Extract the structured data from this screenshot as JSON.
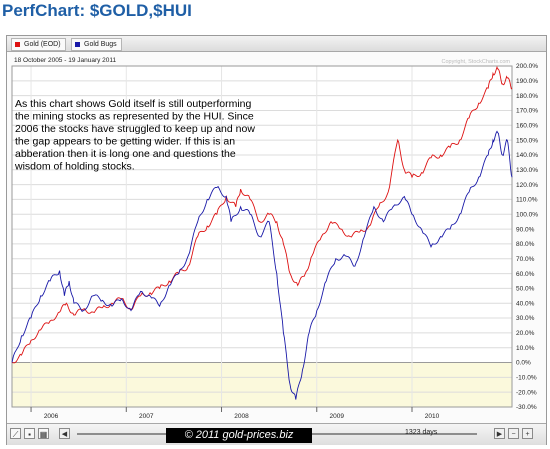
{
  "page": {
    "title": "PerfChart: $GOLD,$HUI"
  },
  "legend": [
    {
      "label": "Gold (EOD)",
      "color": "#dd1111"
    },
    {
      "label": "Gold Bugs",
      "color": "#1a1aa8"
    }
  ],
  "chart_info": {
    "date_range": "18 October 2005 - 19 January 2011",
    "copyright": "Copyright, StockCharts.com"
  },
  "annotation": [
    "As this chart shows Gold itself is still outperforming",
    "the mining stocks as represented by the HUI. Since",
    "2006 the stocks have struggled to keep up and now",
    "the gap appears to be getting wider. If this is an",
    "abberation then it is long one and questions the",
    "wisdom of holding stocks."
  ],
  "footer": {
    "days": "1323 days",
    "watermark": "© 2011 gold-prices.biz"
  },
  "chart_data": {
    "type": "line",
    "ylim": [
      -30,
      200
    ],
    "y_ticks": [
      -30,
      -20,
      -10,
      0,
      10,
      20,
      30,
      40,
      50,
      60,
      70,
      80,
      90,
      100,
      110,
      120,
      130,
      140,
      150,
      160,
      170,
      180,
      190,
      200
    ],
    "y_tick_labels": [
      "-30.0%",
      "-20.0%",
      "-10.0%",
      "0.0%",
      "10.0%",
      "20.0%",
      "30.0%",
      "40.0%",
      "50.0%",
      "60.0%",
      "70.0%",
      "80.0%",
      "90.0%",
      "100.0%",
      "110.0%",
      "120.0%",
      "130.0%",
      "140.0%",
      "150.0%",
      "160.0%",
      "170.0%",
      "180.0%",
      "190.0%",
      "200.0%"
    ],
    "x_ticks": [
      2006,
      2007,
      2008,
      2009,
      2010
    ],
    "x_tick_labels": [
      "2006",
      "2007",
      "2008",
      "2009",
      "2010"
    ],
    "xlim": [
      2005.8,
      2011.05
    ],
    "grid": true,
    "series": [
      {
        "name": "Gold (EOD)",
        "color": "#dd1111",
        "x": [
          2005.8,
          2005.9,
          2006.0,
          2006.1,
          2006.2,
          2006.3,
          2006.37,
          2006.45,
          2006.55,
          2006.65,
          2006.75,
          2006.85,
          2006.95,
          2007.05,
          2007.15,
          2007.25,
          2007.35,
          2007.45,
          2007.55,
          2007.65,
          2007.75,
          2007.85,
          2007.95,
          2008.05,
          2008.15,
          2008.2,
          2008.3,
          2008.4,
          2008.5,
          2008.58,
          2008.65,
          2008.72,
          2008.8,
          2008.88,
          2008.95,
          2009.05,
          2009.15,
          2009.25,
          2009.35,
          2009.45,
          2009.55,
          2009.65,
          2009.75,
          2009.85,
          2009.92,
          2010.0,
          2010.1,
          2010.2,
          2010.3,
          2010.4,
          2010.5,
          2010.6,
          2010.7,
          2010.8,
          2010.85,
          2010.9,
          2010.95,
          2011.0,
          2011.05
        ],
        "values": [
          0,
          5,
          15,
          22,
          28,
          34,
          40,
          32,
          36,
          34,
          37,
          40,
          43,
          36,
          45,
          47,
          50,
          55,
          60,
          65,
          85,
          92,
          100,
          112,
          105,
          117,
          110,
          95,
          100,
          95,
          80,
          60,
          52,
          60,
          72,
          85,
          95,
          90,
          85,
          88,
          92,
          105,
          115,
          150,
          130,
          125,
          128,
          138,
          140,
          145,
          150,
          165,
          175,
          185,
          195,
          198,
          188,
          192,
          185
        ]
      },
      {
        "name": "Gold Bugs",
        "color": "#1a1aa8",
        "x": [
          2005.8,
          2005.9,
          2006.0,
          2006.1,
          2006.2,
          2006.3,
          2006.35,
          2006.4,
          2006.45,
          2006.55,
          2006.65,
          2006.75,
          2006.85,
          2006.95,
          2007.05,
          2007.15,
          2007.25,
          2007.35,
          2007.45,
          2007.55,
          2007.65,
          2007.75,
          2007.85,
          2007.95,
          2008.05,
          2008.1,
          2008.2,
          2008.3,
          2008.4,
          2008.5,
          2008.58,
          2008.65,
          2008.72,
          2008.78,
          2008.85,
          2008.92,
          2009.0,
          2009.1,
          2009.2,
          2009.3,
          2009.4,
          2009.5,
          2009.6,
          2009.7,
          2009.8,
          2009.92,
          2010.0,
          2010.1,
          2010.2,
          2010.3,
          2010.4,
          2010.5,
          2010.6,
          2010.7,
          2010.8,
          2010.85,
          2010.9,
          2010.95,
          2011.0,
          2011.05
        ],
        "values": [
          0,
          18,
          30,
          45,
          55,
          62,
          45,
          55,
          40,
          35,
          45,
          42,
          38,
          43,
          35,
          48,
          45,
          38,
          52,
          60,
          72,
          95,
          110,
          118,
          112,
          95,
          105,
          100,
          85,
          95,
          60,
          20,
          -15,
          -25,
          -5,
          20,
          35,
          55,
          70,
          72,
          65,
          85,
          105,
          95,
          105,
          112,
          100,
          90,
          78,
          85,
          90,
          100,
          115,
          125,
          140,
          150,
          155,
          140,
          150,
          125
        ]
      }
    ]
  }
}
